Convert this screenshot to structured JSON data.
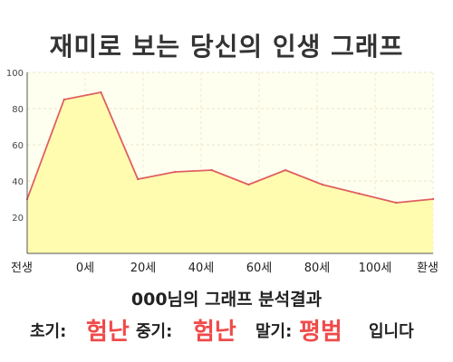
{
  "title": "재미로 보는 당신의 인생 그래프",
  "chart_data": {
    "type": "area",
    "x": [
      0,
      1,
      2,
      3,
      4,
      5,
      6,
      7,
      8,
      9,
      10,
      11
    ],
    "values": [
      30,
      85,
      89,
      41,
      45,
      46,
      38,
      46,
      38,
      33,
      28,
      30
    ],
    "xticks": [
      {
        "x": 0,
        "label": "전생"
      },
      {
        "x": 2,
        "label": "0세"
      },
      {
        "x": 4,
        "label": "20세"
      },
      {
        "x": 6,
        "label": "40세"
      },
      {
        "x": 8,
        "label": "60세"
      },
      {
        "x": 10,
        "label": "80세"
      },
      {
        "x": 12,
        "label": "100세"
      },
      {
        "x": 14,
        "label": "환생"
      }
    ],
    "yticks": [
      20,
      40,
      60,
      80,
      100
    ],
    "ylim": [
      0,
      100
    ],
    "grid": true,
    "line_color": "#e06060",
    "fill_color": "#fffcb0",
    "plot_bg": "#fffff0"
  },
  "summary": {
    "name": "000",
    "text": "님의 그래프 분석결과"
  },
  "results": {
    "early_label": "초기:",
    "early_value": "험난",
    "mid_label": "중기:",
    "mid_value": "험난",
    "late_label": "말기:",
    "late_value": "평범",
    "ending": "입니다"
  },
  "colors": {
    "accent": "#f04a4a"
  }
}
